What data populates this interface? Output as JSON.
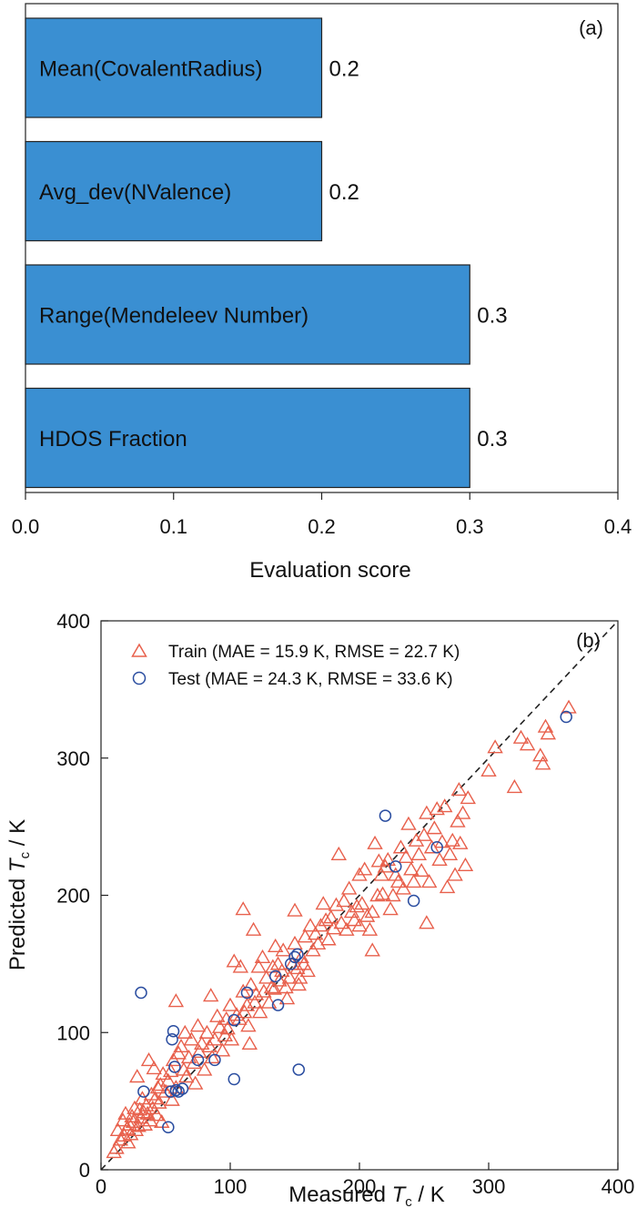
{
  "chart_data": [
    {
      "panel": "(a)",
      "type": "bar",
      "orientation": "horizontal",
      "categories": [
        "Mean(CovalentRadius)",
        "Avg_dev(NValence)",
        "Range(Mendeleev Number)",
        "HDOS Fraction"
      ],
      "values": [
        0.2,
        0.2,
        0.3,
        0.3
      ],
      "value_labels": [
        "0.2",
        "0.2",
        "0.3",
        "0.3"
      ],
      "xlabel": "Evaluation score",
      "xlim": [
        0.0,
        0.4
      ],
      "xticks": [
        "0.0",
        "0.1",
        "0.2",
        "0.3",
        "0.4"
      ],
      "bar_color": "#3a8fd2",
      "grid": false
    },
    {
      "panel": "(b)",
      "type": "scatter",
      "xlabel_prefix": "Measured ",
      "xlabel_symbol": "T",
      "xlabel_sub": "c",
      "xlabel_suffix": " / K",
      "ylabel_prefix": "Predicted ",
      "ylabel_symbol": "T",
      "ylabel_sub": "c",
      "ylabel_suffix": " / K",
      "xlim": [
        0,
        400
      ],
      "ylim": [
        0,
        400
      ],
      "xticks": [
        "0",
        "100",
        "200",
        "300",
        "400"
      ],
      "yticks": [
        "0",
        "100",
        "200",
        "300",
        "400"
      ],
      "reference_line": "y = x (dashed)",
      "legend_position": "top-left",
      "grid": false,
      "series": [
        {
          "name": "Train (MAE = 15.9 K, RMSE = 22.7 K)",
          "marker": "triangle-open",
          "color": "#e8604c",
          "points": [
            [
              10,
              13
            ],
            [
              12,
              16
            ],
            [
              13,
              29
            ],
            [
              15,
              22
            ],
            [
              17,
              36
            ],
            [
              18,
              25
            ],
            [
              19,
              41
            ],
            [
              20,
              30
            ],
            [
              21,
              20
            ],
            [
              22,
              33
            ],
            [
              23,
              26
            ],
            [
              24,
              39
            ],
            [
              25,
              35
            ],
            [
              26,
              45
            ],
            [
              27,
              29
            ],
            [
              28,
              68
            ],
            [
              29,
              32
            ],
            [
              30,
              44
            ],
            [
              31,
              38
            ],
            [
              32,
              52
            ],
            [
              33,
              42
            ],
            [
              34,
              33
            ],
            [
              35,
              47
            ],
            [
              36,
              41
            ],
            [
              37,
              80
            ],
            [
              38,
              36
            ],
            [
              39,
              55
            ],
            [
              40,
              45
            ],
            [
              41,
              74
            ],
            [
              42,
              52
            ],
            [
              43,
              40
            ],
            [
              44,
              60
            ],
            [
              45,
              49
            ],
            [
              46,
              62
            ],
            [
              47,
              35
            ],
            [
              48,
              70
            ],
            [
              50,
              57
            ],
            [
              52,
              65
            ],
            [
              54,
              72
            ],
            [
              55,
              51
            ],
            [
              56,
              80
            ],
            [
              58,
              123
            ],
            [
              58,
              60
            ],
            [
              60,
              85
            ],
            [
              62,
              90
            ],
            [
              64,
              73
            ],
            [
              65,
              100
            ],
            [
              66,
              68
            ],
            [
              68,
              82
            ],
            [
              70,
              95
            ],
            [
              72,
              78
            ],
            [
              73,
              63
            ],
            [
              75,
              105
            ],
            [
              76,
              86
            ],
            [
              78,
              92
            ],
            [
              80,
              73
            ],
            [
              82,
              100
            ],
            [
              84,
              90
            ],
            [
              85,
              127
            ],
            [
              86,
              82
            ],
            [
              88,
              95
            ],
            [
              90,
              112
            ],
            [
              92,
              104
            ],
            [
              94,
              87
            ],
            [
              96,
              98
            ],
            [
              97,
              110
            ],
            [
              98,
              103
            ],
            [
              100,
              120
            ],
            [
              101,
              95
            ],
            [
              103,
              152
            ],
            [
              105,
              113
            ],
            [
              107,
              110
            ],
            [
              108,
              148
            ],
            [
              110,
              190
            ],
            [
              110,
              130
            ],
            [
              111,
              115
            ],
            [
              113,
              120
            ],
            [
              114,
              105
            ],
            [
              115,
              92
            ],
            [
              116,
              135
            ],
            [
              118,
              175
            ],
            [
              119,
              122
            ],
            [
              120,
              128
            ],
            [
              122,
              148
            ],
            [
              123,
              115
            ],
            [
              125,
              155
            ],
            [
              126,
              130
            ],
            [
              128,
              140
            ],
            [
              130,
              122
            ],
            [
              132,
              133
            ],
            [
              133,
              148
            ],
            [
              134,
              132
            ],
            [
              135,
              163
            ],
            [
              137,
              150
            ],
            [
              138,
              138
            ],
            [
              140,
              145
            ],
            [
              141,
              160
            ],
            [
              143,
              133
            ],
            [
              144,
              125
            ],
            [
              146,
              140
            ],
            [
              148,
              150
            ],
            [
              150,
              165
            ],
            [
              150,
              189
            ],
            [
              152,
              147
            ],
            [
              153,
              135
            ],
            [
              154,
              140
            ],
            [
              155,
              155
            ],
            [
              157,
              150
            ],
            [
              158,
              170
            ],
            [
              160,
              145
            ],
            [
              162,
              178
            ],
            [
              164,
              160
            ],
            [
              166,
              172
            ],
            [
              168,
              165
            ],
            [
              170,
              178
            ],
            [
              172,
              194
            ],
            [
              174,
              182
            ],
            [
              176,
              168
            ],
            [
              178,
              184
            ],
            [
              180,
              176
            ],
            [
              182,
              193
            ],
            [
              184,
              230
            ],
            [
              186,
              180
            ],
            [
              188,
              196
            ],
            [
              190,
              175
            ],
            [
              192,
              205
            ],
            [
              194,
              188
            ],
            [
              196,
              182
            ],
            [
              198,
              192
            ],
            [
              200,
              215
            ],
            [
              200,
              178
            ],
            [
              202,
              194
            ],
            [
              204,
              219
            ],
            [
              206,
              185
            ],
            [
              208,
              175
            ],
            [
              210,
              188
            ],
            [
              210,
              160
            ],
            [
              212,
              238
            ],
            [
              214,
              200
            ],
            [
              215,
              225
            ],
            [
              217,
              215
            ],
            [
              218,
              201
            ],
            [
              220,
              221
            ],
            [
              222,
              226
            ],
            [
              224,
              190
            ],
            [
              226,
              200
            ],
            [
              228,
              215
            ],
            [
              230,
              210
            ],
            [
              232,
              235
            ],
            [
              234,
              205
            ],
            [
              236,
              228
            ],
            [
              238,
              252
            ],
            [
              240,
              219
            ],
            [
              242,
              210
            ],
            [
              244,
              240
            ],
            [
              246,
              230
            ],
            [
              248,
              218
            ],
            [
              250,
              244
            ],
            [
              252,
              260
            ],
            [
              252,
              180
            ],
            [
              254,
              210
            ],
            [
              256,
              235
            ],
            [
              258,
              249
            ],
            [
              260,
              263
            ],
            [
              262,
              226
            ],
            [
              264,
              239
            ],
            [
              266,
              265
            ],
            [
              268,
              206
            ],
            [
              270,
              230
            ],
            [
              272,
              240
            ],
            [
              274,
              215
            ],
            [
              276,
              254
            ],
            [
              277,
              277
            ],
            [
              278,
              238
            ],
            [
              280,
              260
            ],
            [
              282,
              222
            ],
            [
              284,
              271
            ],
            [
              300,
              291
            ],
            [
              305,
              308
            ],
            [
              320,
              279
            ],
            [
              325,
              315
            ],
            [
              330,
              310
            ],
            [
              340,
              302
            ],
            [
              342,
              296
            ],
            [
              344,
              323
            ],
            [
              346,
              318
            ],
            [
              362,
              337
            ]
          ]
        },
        {
          "name": "Test (MAE = 24.3 K, RMSE = 33.6 K)",
          "marker": "circle-open",
          "color": "#2a4da0",
          "points": [
            [
              31,
              129
            ],
            [
              33,
              57
            ],
            [
              52,
              31
            ],
            [
              54,
              57
            ],
            [
              55,
              95
            ],
            [
              56,
              101
            ],
            [
              57,
              75
            ],
            [
              58,
              58
            ],
            [
              60,
              57
            ],
            [
              63,
              59
            ],
            [
              75,
              80
            ],
            [
              88,
              80
            ],
            [
              103,
              109
            ],
            [
              103,
              66
            ],
            [
              113,
              129
            ],
            [
              135,
              141
            ],
            [
              137,
              120
            ],
            [
              147,
              150
            ],
            [
              150,
              155
            ],
            [
              152,
              157
            ],
            [
              153,
              73
            ],
            [
              220,
              258
            ],
            [
              228,
              221
            ],
            [
              242,
              196
            ],
            [
              260,
              235
            ],
            [
              360,
              330
            ]
          ]
        }
      ]
    }
  ]
}
